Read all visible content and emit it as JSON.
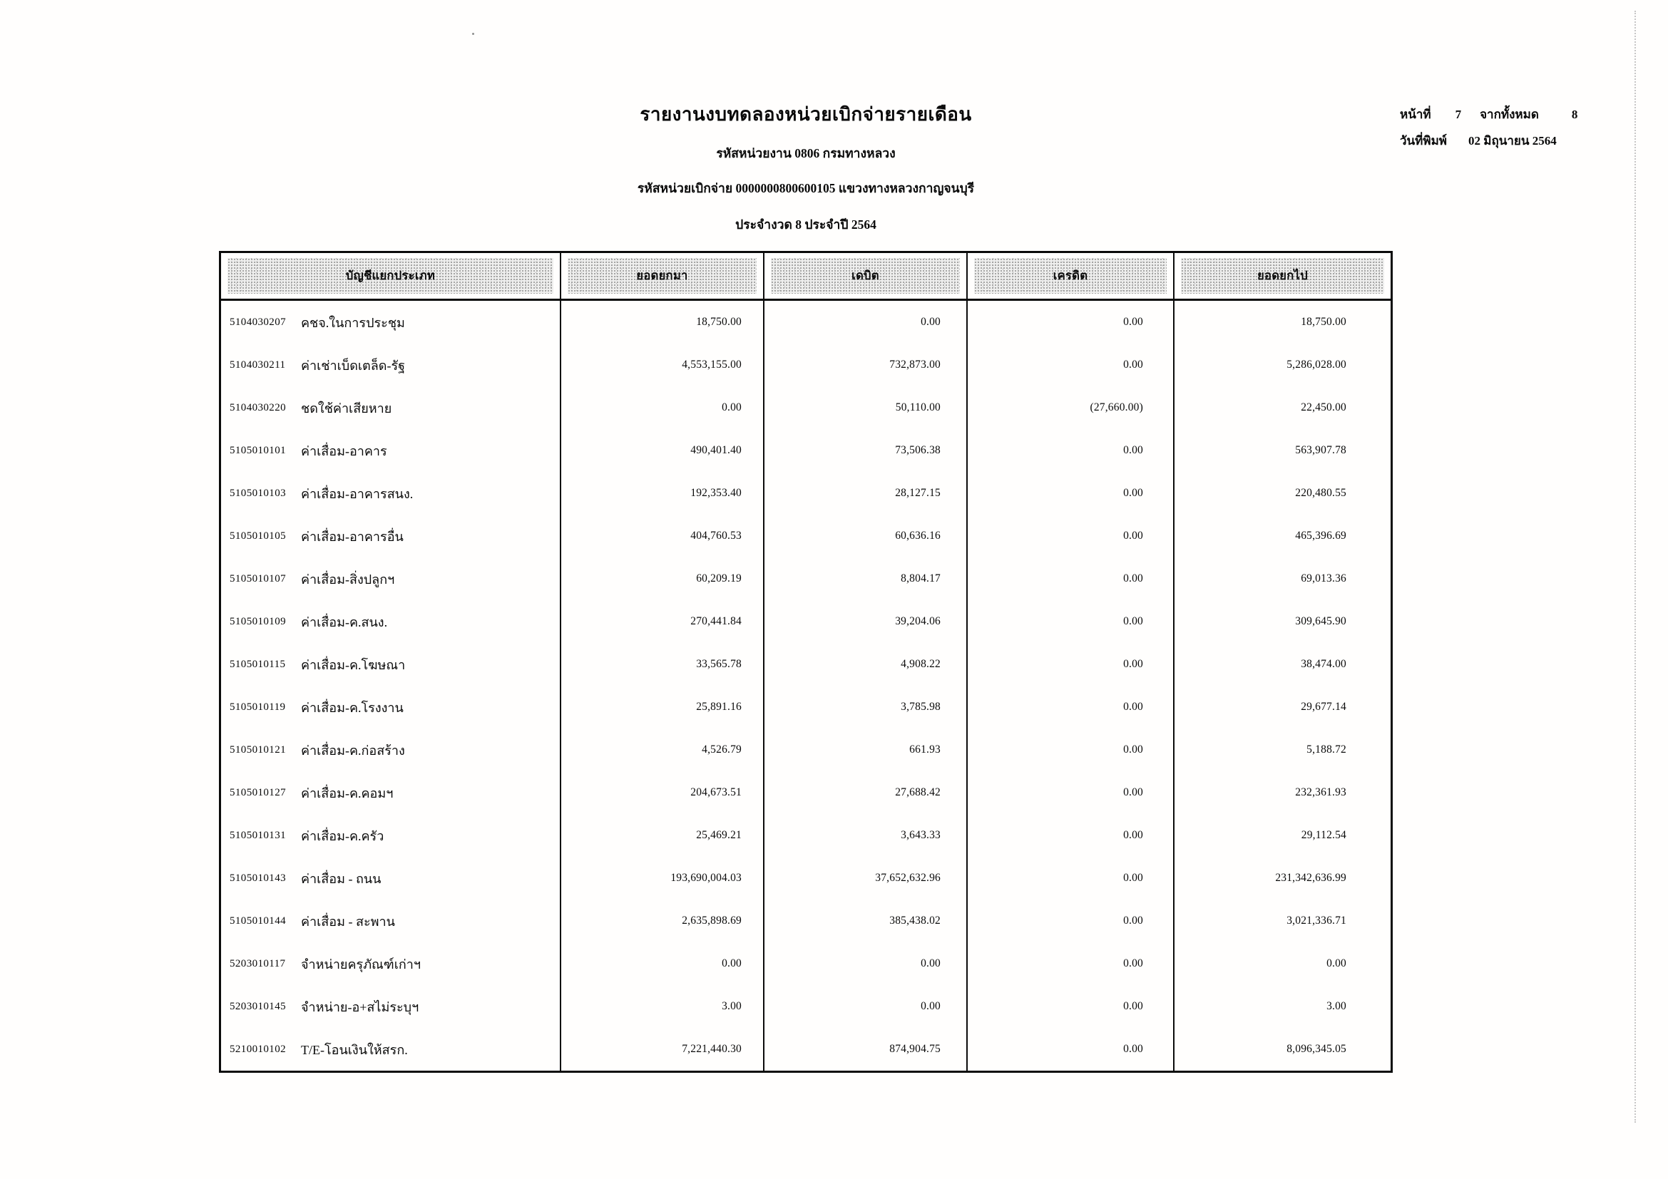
{
  "page": {
    "title": "รายงานงบทดลองหน่วยเบิกจ่ายรายเดือน",
    "subtitle1": "รหัสหน่วยงาน 0806 กรมทางหลวง",
    "subtitle2": "รหัสหน่วยเบิกจ่าย 0000000800600105 แขวงทางหลวงกาญจนบุรี",
    "subtitle3": "ประจำงวด 8 ประจำปี 2564",
    "page_info": {
      "page_label": "หน้าที่",
      "page_number": "7",
      "total_label": "จากทั้งหมด",
      "total_pages": "8",
      "print_date_label": "วันที่พิมพ์",
      "print_date": "02 มิถุนายน 2564"
    }
  },
  "table": {
    "headers": [
      "บัญชีแยกประเภท",
      "ยอดยกมา",
      "เดบิต",
      "เครดิต",
      "ยอดยกไป"
    ],
    "rows": [
      {
        "code": "5104030207",
        "name": "คชจ.ในการประชุม",
        "beginning": "18,750.00",
        "debit": "0.00",
        "credit": "0.00",
        "ending": "18,750.00"
      },
      {
        "code": "5104030211",
        "name": "ค่าเช่าเบ็ดเตล็ด-รัฐ",
        "beginning": "4,553,155.00",
        "debit": "732,873.00",
        "credit": "0.00",
        "ending": "5,286,028.00"
      },
      {
        "code": "5104030220",
        "name": "ชดใช้ค่าเสียหาย",
        "beginning": "0.00",
        "debit": "50,110.00",
        "credit": "(27,660.00)",
        "ending": "22,450.00"
      },
      {
        "code": "5105010101",
        "name": "ค่าเสื่อม-อาคาร",
        "beginning": "490,401.40",
        "debit": "73,506.38",
        "credit": "0.00",
        "ending": "563,907.78"
      },
      {
        "code": "5105010103",
        "name": "ค่าเสื่อม-อาคารสนง.",
        "beginning": "192,353.40",
        "debit": "28,127.15",
        "credit": "0.00",
        "ending": "220,480.55"
      },
      {
        "code": "5105010105",
        "name": "ค่าเสื่อม-อาคารอื่น",
        "beginning": "404,760.53",
        "debit": "60,636.16",
        "credit": "0.00",
        "ending": "465,396.69"
      },
      {
        "code": "5105010107",
        "name": "ค่าเสื่อม-สิ่งปลูกฯ",
        "beginning": "60,209.19",
        "debit": "8,804.17",
        "credit": "0.00",
        "ending": "69,013.36"
      },
      {
        "code": "5105010109",
        "name": "ค่าเสื่อม-ค.สนง.",
        "beginning": "270,441.84",
        "debit": "39,204.06",
        "credit": "0.00",
        "ending": "309,645.90"
      },
      {
        "code": "5105010115",
        "name": "ค่าเสื่อม-ค.โฆษณา",
        "beginning": "33,565.78",
        "debit": "4,908.22",
        "credit": "0.00",
        "ending": "38,474.00"
      },
      {
        "code": "5105010119",
        "name": "ค่าเสื่อม-ค.โรงงาน",
        "beginning": "25,891.16",
        "debit": "3,785.98",
        "credit": "0.00",
        "ending": "29,677.14"
      },
      {
        "code": "5105010121",
        "name": "ค่าเสื่อม-ค.ก่อสร้าง",
        "beginning": "4,526.79",
        "debit": "661.93",
        "credit": "0.00",
        "ending": "5,188.72"
      },
      {
        "code": "5105010127",
        "name": "ค่าเสื่อม-ค.คอมฯ",
        "beginning": "204,673.51",
        "debit": "27,688.42",
        "credit": "0.00",
        "ending": "232,361.93"
      },
      {
        "code": "5105010131",
        "name": "ค่าเสื่อม-ค.ครัว",
        "beginning": "25,469.21",
        "debit": "3,643.33",
        "credit": "0.00",
        "ending": "29,112.54"
      },
      {
        "code": "5105010143",
        "name": "ค่าเสื่อม - ถนน",
        "beginning": "193,690,004.03",
        "debit": "37,652,632.96",
        "credit": "0.00",
        "ending": "231,342,636.99"
      },
      {
        "code": "5105010144",
        "name": "ค่าเสื่อม - สะพาน",
        "beginning": "2,635,898.69",
        "debit": "385,438.02",
        "credit": "0.00",
        "ending": "3,021,336.71"
      },
      {
        "code": "5203010117",
        "name": "จำหน่ายครุภัณฑ์เก่าฯ",
        "beginning": "0.00",
        "debit": "0.00",
        "credit": "0.00",
        "ending": "0.00"
      },
      {
        "code": "5203010145",
        "name": "จำหน่าย-อ+สไม่ระบุฯ",
        "beginning": "3.00",
        "debit": "0.00",
        "credit": "0.00",
        "ending": "3.00"
      },
      {
        "code": "5210010102",
        "name": "T/E-โอนเงินให้สรก.",
        "beginning": "7,221,440.30",
        "debit": "874,904.75",
        "credit": "0.00",
        "ending": "8,096,345.05"
      }
    ]
  }
}
